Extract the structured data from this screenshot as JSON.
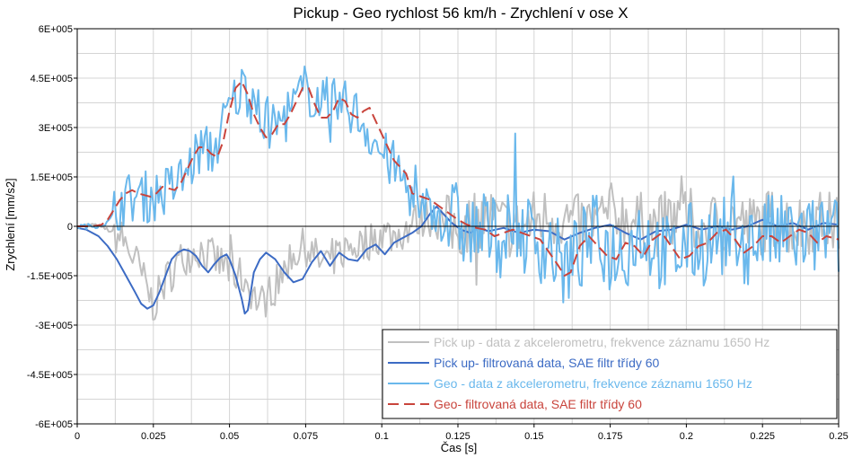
{
  "chart_data": {
    "type": "line",
    "title": "Pickup - Geo rychlost 56 km/h - Zrychlení v ose X",
    "xlabel": "Čas [s]",
    "ylabel": "Zrychlení [mm/s2]",
    "xlim": [
      0,
      0.25
    ],
    "ylim": [
      -600000,
      600000
    ],
    "x_ticks": [
      0,
      0.025,
      0.05,
      0.075,
      0.1,
      0.125,
      0.15,
      0.175,
      0.2,
      0.225,
      0.25
    ],
    "x_tick_labels": [
      "0",
      "0.025",
      "0.05",
      "0.075",
      "0.1",
      "0.125",
      "0.15",
      "0.175",
      "0.2",
      "0.225",
      "0.25"
    ],
    "y_ticks": [
      600000,
      450000,
      300000,
      150000,
      0,
      -150000,
      -300000,
      -450000,
      -600000
    ],
    "y_tick_labels": [
      "6E+005",
      "4.5E+005",
      "3E+005",
      "1.5E+005",
      "0",
      "-1.5E+005",
      "-3E+005",
      "-4.5E+005",
      "-6E+005"
    ],
    "grid": true,
    "legend_position": "bottom-right",
    "series": [
      {
        "name": "Pick up - data z akcelerometru, frekvence záznamu 1650 Hz",
        "color": "#c0c0c0",
        "style": "solid",
        "width": 2,
        "noisy": true,
        "x": [
          0,
          0.005,
          0.01,
          0.015,
          0.02,
          0.025,
          0.03,
          0.035,
          0.04,
          0.045,
          0.05,
          0.055,
          0.06,
          0.065,
          0.07,
          0.075,
          0.08,
          0.085,
          0.09,
          0.095,
          0.1,
          0.105,
          0.11,
          0.115,
          0.12,
          0.125,
          0.13,
          0.135,
          0.14,
          0.145,
          0.15,
          0.155,
          0.16,
          0.165,
          0.17,
          0.175,
          0.18,
          0.185,
          0.19,
          0.195,
          0.2,
          0.205,
          0.21,
          0.215,
          0.22,
          0.225,
          0.23,
          0.235,
          0.24,
          0.245,
          0.25
        ],
        "y": [
          0,
          5000,
          -10000,
          -40000,
          -120000,
          -240000,
          -150000,
          -90000,
          -70000,
          -100000,
          -130000,
          -160000,
          -240000,
          -180000,
          -90000,
          -60000,
          -110000,
          -90000,
          -60000,
          -50000,
          -20000,
          -30000,
          10000,
          30000,
          10000,
          -10000,
          20000,
          30000,
          0,
          -10000,
          20000,
          30000,
          20000,
          0,
          10000,
          40000,
          30000,
          10000,
          0,
          20000,
          30000,
          0,
          10000,
          20000,
          0,
          10000,
          30000,
          0,
          10000,
          20000,
          0
        ]
      },
      {
        "name": "Pick up- filtrovaná data, SAE filtr třídy 60",
        "color": "#3c6bc4",
        "style": "solid",
        "width": 2,
        "noisy": false,
        "x": [
          0,
          0.003,
          0.007,
          0.01,
          0.013,
          0.016,
          0.019,
          0.021,
          0.023,
          0.025,
          0.027,
          0.029,
          0.031,
          0.033,
          0.035,
          0.037,
          0.039,
          0.041,
          0.043,
          0.045,
          0.047,
          0.049,
          0.05,
          0.052,
          0.054,
          0.055,
          0.056,
          0.057,
          0.058,
          0.06,
          0.062,
          0.065,
          0.068,
          0.071,
          0.074,
          0.077,
          0.08,
          0.083,
          0.086,
          0.089,
          0.092,
          0.095,
          0.098,
          0.101,
          0.104,
          0.107,
          0.11,
          0.113,
          0.116,
          0.118,
          0.12,
          0.123,
          0.126,
          0.129,
          0.132,
          0.135,
          0.14,
          0.145,
          0.15,
          0.155,
          0.16,
          0.165,
          0.17,
          0.175,
          0.18,
          0.185,
          0.19,
          0.195,
          0.2,
          0.205,
          0.21,
          0.215,
          0.22,
          0.225,
          0.23,
          0.235,
          0.24,
          0.245,
          0.25
        ],
        "y": [
          -5000,
          -10000,
          -30000,
          -60000,
          -100000,
          -150000,
          -200000,
          -235000,
          -250000,
          -240000,
          -200000,
          -150000,
          -100000,
          -80000,
          -70000,
          -75000,
          -90000,
          -120000,
          -140000,
          -115000,
          -95000,
          -85000,
          -100000,
          -150000,
          -220000,
          -265000,
          -255000,
          -200000,
          -140000,
          -100000,
          -80000,
          -100000,
          -140000,
          -170000,
          -160000,
          -110000,
          -75000,
          -120000,
          -80000,
          -100000,
          -105000,
          -70000,
          -55000,
          -85000,
          -50000,
          -35000,
          -20000,
          0,
          40000,
          60000,
          40000,
          10000,
          -10000,
          -20000,
          -5000,
          -15000,
          -5000,
          -20000,
          -10000,
          -15000,
          -40000,
          -20000,
          -5000,
          5000,
          -20000,
          -40000,
          -15000,
          -10000,
          5000,
          -10000,
          0,
          -10000,
          0,
          20000,
          0,
          10000,
          -10000,
          10000,
          5000
        ]
      },
      {
        "name": "Geo - data z akcelerometru, frekvence záznamu 1650 Hz",
        "color": "#6ab8ec",
        "style": "solid",
        "width": 2,
        "noisy": true,
        "x": [
          0,
          0.005,
          0.01,
          0.015,
          0.02,
          0.025,
          0.03,
          0.035,
          0.04,
          0.045,
          0.05,
          0.055,
          0.06,
          0.065,
          0.07,
          0.075,
          0.08,
          0.085,
          0.09,
          0.095,
          0.1,
          0.105,
          0.11,
          0.115,
          0.12,
          0.125,
          0.13,
          0.135,
          0.14,
          0.145,
          0.15,
          0.155,
          0.16,
          0.165,
          0.17,
          0.175,
          0.18,
          0.185,
          0.19,
          0.195,
          0.2,
          0.205,
          0.21,
          0.215,
          0.22,
          0.225,
          0.23,
          0.235,
          0.24,
          0.245,
          0.25
        ],
        "y": [
          0,
          0,
          10000,
          80000,
          90000,
          90000,
          110000,
          150000,
          230000,
          230000,
          360000,
          430000,
          330000,
          300000,
          350000,
          420000,
          380000,
          370000,
          360000,
          300000,
          220000,
          170000,
          90000,
          60000,
          30000,
          10000,
          -20000,
          -20000,
          -30000,
          -10000,
          -40000,
          -60000,
          -130000,
          -80000,
          -20000,
          -80000,
          -70000,
          -10000,
          -60000,
          -100000,
          -50000,
          -60000,
          -30000,
          -40000,
          -60000,
          -20000,
          -30000,
          -30000,
          -40000,
          -20000,
          -30000
        ]
      },
      {
        "name": "Geo- filtrovaná data, SAE filtr třídy 60",
        "color": "#c9443c",
        "style": "dashed",
        "width": 2,
        "noisy": false,
        "x": [
          0,
          0.005,
          0.008,
          0.01,
          0.012,
          0.014,
          0.016,
          0.018,
          0.02,
          0.022,
          0.024,
          0.026,
          0.028,
          0.03,
          0.032,
          0.034,
          0.036,
          0.038,
          0.04,
          0.042,
          0.044,
          0.046,
          0.048,
          0.05,
          0.052,
          0.054,
          0.056,
          0.058,
          0.06,
          0.062,
          0.064,
          0.066,
          0.068,
          0.07,
          0.072,
          0.074,
          0.076,
          0.078,
          0.08,
          0.082,
          0.084,
          0.086,
          0.088,
          0.09,
          0.092,
          0.094,
          0.096,
          0.098,
          0.1,
          0.102,
          0.104,
          0.106,
          0.108,
          0.11,
          0.113,
          0.116,
          0.119,
          0.122,
          0.125,
          0.128,
          0.131,
          0.134,
          0.137,
          0.14,
          0.143,
          0.146,
          0.149,
          0.152,
          0.155,
          0.158,
          0.16,
          0.162,
          0.165,
          0.168,
          0.171,
          0.174,
          0.177,
          0.18,
          0.183,
          0.186,
          0.189,
          0.192,
          0.195,
          0.198,
          0.201,
          0.204,
          0.207,
          0.21,
          0.213,
          0.216,
          0.219,
          0.222,
          0.225,
          0.228,
          0.231,
          0.234,
          0.237,
          0.24,
          0.243,
          0.246,
          0.25
        ],
        "y": [
          0,
          0,
          5000,
          20000,
          50000,
          80000,
          100000,
          110000,
          100000,
          95000,
          90000,
          100000,
          120000,
          115000,
          110000,
          130000,
          170000,
          210000,
          240000,
          240000,
          220000,
          210000,
          260000,
          350000,
          420000,
          440000,
          400000,
          340000,
          300000,
          270000,
          280000,
          310000,
          310000,
          340000,
          380000,
          420000,
          420000,
          370000,
          330000,
          330000,
          350000,
          390000,
          380000,
          340000,
          330000,
          350000,
          360000,
          320000,
          280000,
          240000,
          200000,
          180000,
          160000,
          100000,
          90000,
          80000,
          60000,
          40000,
          20000,
          5000,
          -5000,
          -10000,
          -30000,
          -20000,
          -10000,
          -20000,
          -30000,
          -40000,
          -80000,
          -120000,
          -150000,
          -140000,
          -60000,
          -30000,
          -60000,
          -90000,
          -100000,
          -50000,
          -60000,
          -90000,
          -40000,
          -20000,
          -60000,
          -100000,
          -90000,
          -60000,
          -50000,
          -20000,
          -10000,
          -40000,
          -80000,
          -60000,
          -30000,
          -30000,
          -50000,
          -30000,
          -10000,
          -20000,
          -50000,
          -30000,
          -40000
        ]
      }
    ]
  }
}
